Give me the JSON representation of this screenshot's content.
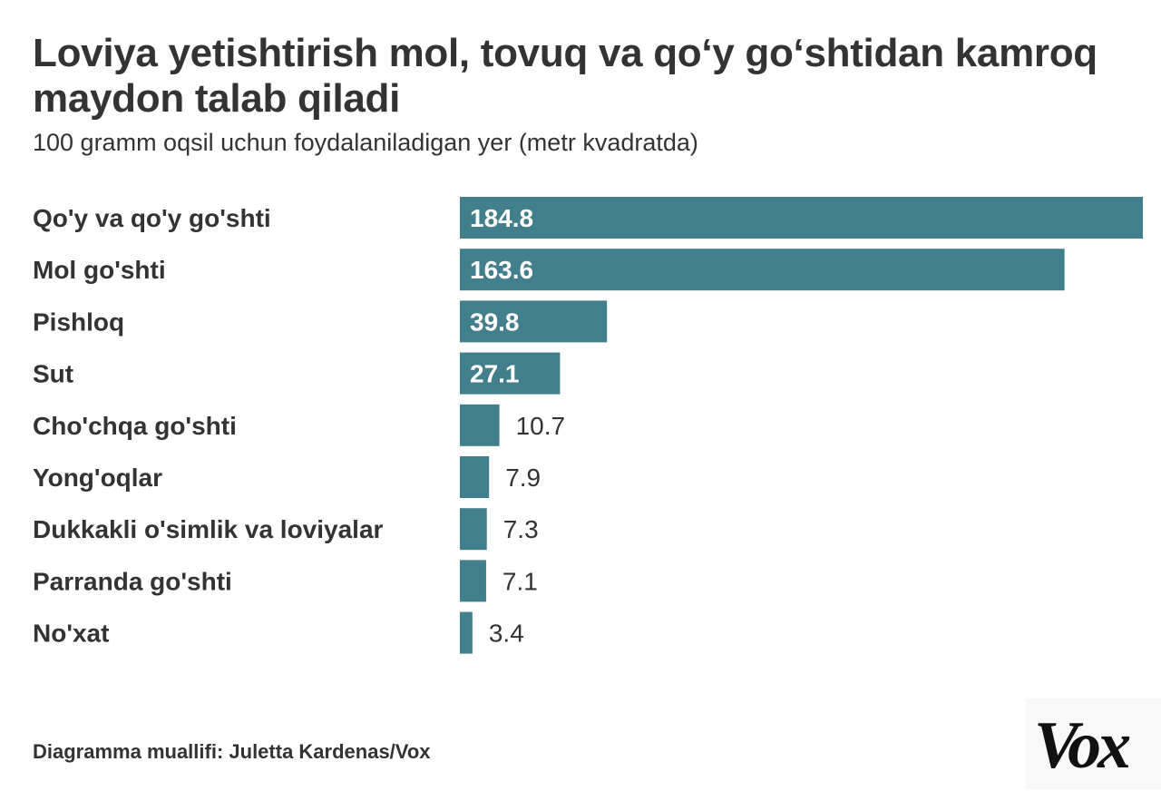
{
  "title": "Loviya yetishtirish mol, tovuq va qo‘y go‘shtidan kamroq maydon talab qiladi",
  "subtitle": "100 gramm oqsil uchun foydalaniladigan yer (metr kvadratda)",
  "footer": "Diagramma muallifi: Juletta Kardenas/Vox",
  "logo_text": "Vox",
  "colors": {
    "bar": "#427f8d",
    "text": "#333333",
    "value_inside": "#ffffff"
  },
  "chart_data": {
    "type": "bar",
    "orientation": "horizontal",
    "categories": [
      "Qo'y va qo'y go'shti",
      "Mol go'shti",
      "Pishloq",
      "Sut",
      "Cho'chqa go'shti",
      "Yong'oqlar",
      "Dukkakli o'simlik va loviyalar",
      "Parranda go'shti",
      "No'xat"
    ],
    "values": [
      184.8,
      163.6,
      39.8,
      27.1,
      10.7,
      7.9,
      7.3,
      7.1,
      3.4
    ],
    "value_labels": [
      "184.8",
      "163.6",
      "39.8",
      "27.1",
      "10.7",
      "7.9",
      "7.3",
      "7.1",
      "3.4"
    ],
    "title": "Loviya yetishtirish mol, tovuq va qo‘y go‘shtidan kamroq maydon talab qiladi",
    "subtitle": "100 gramm oqsil uchun foydalaniladigan yer (metr kvadratda)",
    "xlabel": "",
    "ylabel": "",
    "xlim": [
      0,
      184.8
    ],
    "grid": false,
    "legend": "none",
    "labels_inside_threshold": 20
  }
}
